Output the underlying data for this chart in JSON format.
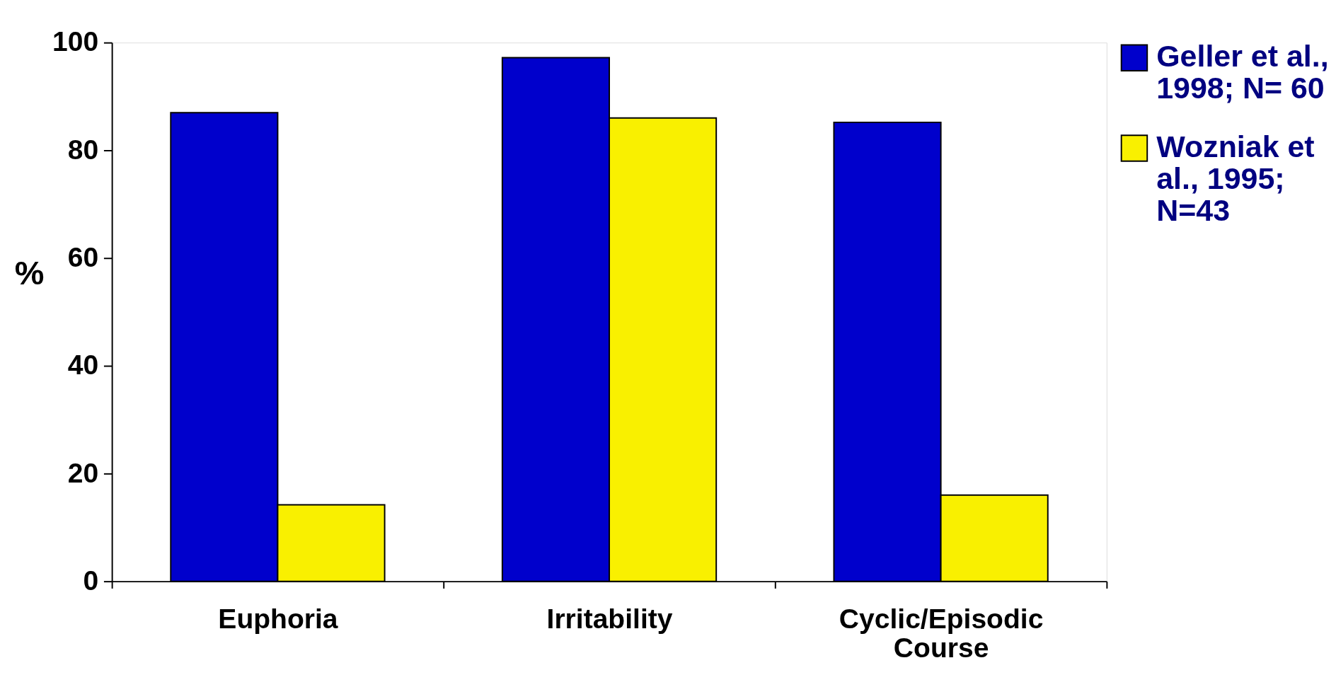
{
  "chart_data": {
    "type": "bar",
    "ylabel": "%",
    "categories": [
      "Euphoria",
      "Irritability",
      "Cyclic/Episodic Course"
    ],
    "series": [
      {
        "name": "Geller et al., 1998; N= 60",
        "color": "#0000cc",
        "values": [
          87,
          97.2,
          85.2
        ]
      },
      {
        "name": "Wozniak et al., 1995; N=43",
        "color": "#f9f000",
        "values": [
          14.2,
          86,
          16
        ]
      }
    ],
    "ylim": [
      0,
      100
    ],
    "yticks": [
      0,
      20,
      40,
      60,
      80,
      100
    ],
    "grid": false,
    "legend": "top right"
  }
}
